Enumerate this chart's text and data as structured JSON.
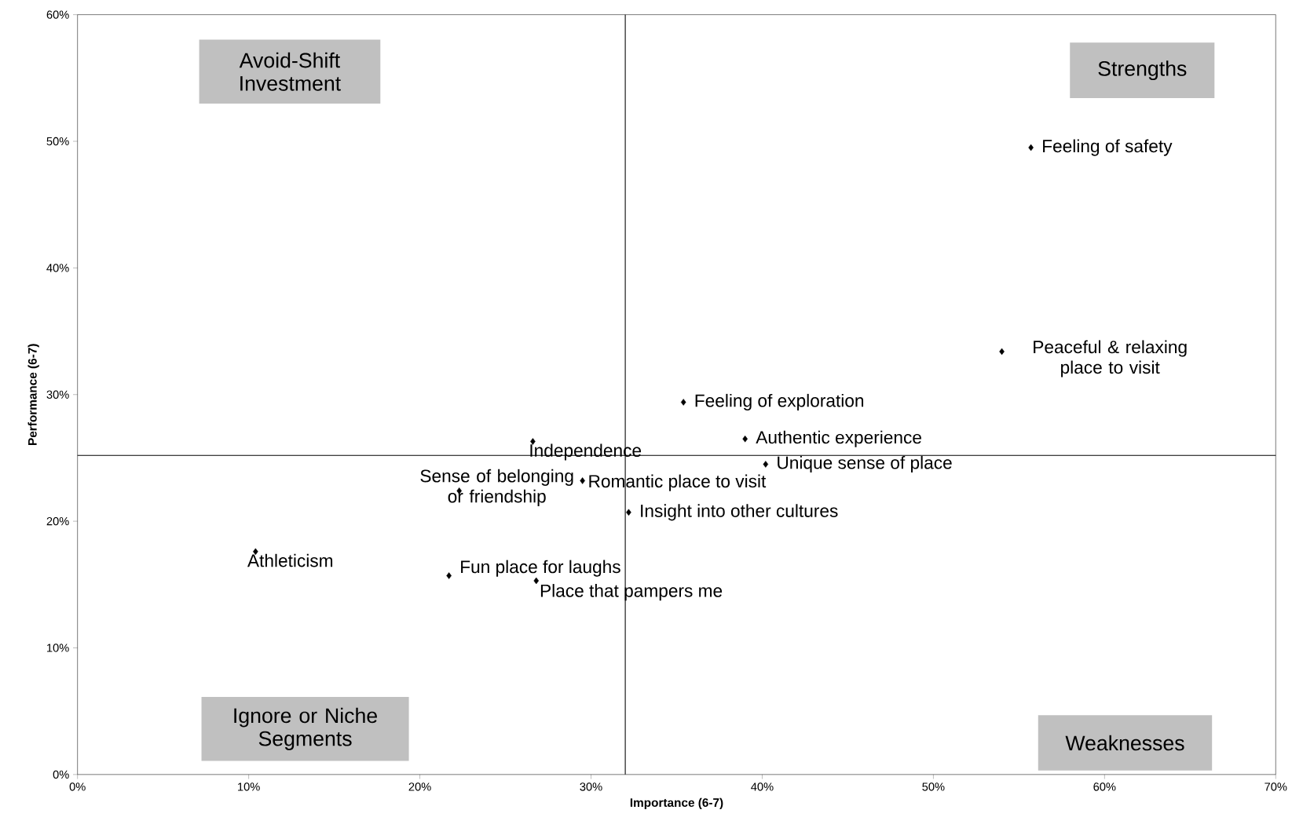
{
  "chart_data": {
    "type": "scatter",
    "xlabel": "Importance (6-7)",
    "ylabel": "Performance (6-7)",
    "x": [
      55.7,
      54.0,
      35.4,
      39.0,
      40.2,
      26.6,
      29.5,
      22.3,
      32.2,
      10.4,
      21.7,
      26.8
    ],
    "values": [
      49.5,
      33.4,
      29.4,
      26.5,
      24.5,
      26.3,
      23.2,
      22.4,
      20.7,
      17.6,
      15.7,
      15.3
    ],
    "color": "#000000",
    "marker": "diamond",
    "grid": false,
    "xlim": [
      0,
      70
    ],
    "ylim": [
      0,
      60
    ],
    "xticks": [
      {
        "value": 0,
        "label": "0%"
      },
      {
        "value": 10,
        "label": "10%"
      },
      {
        "value": 20,
        "label": "20%"
      },
      {
        "value": 30,
        "label": "30%"
      },
      {
        "value": 40,
        "label": "40%"
      },
      {
        "value": 50,
        "label": "50%"
      },
      {
        "value": 60,
        "label": "60%"
      },
      {
        "value": 70,
        "label": "70%"
      }
    ],
    "yticks": [
      {
        "value": 0,
        "label": "0%"
      },
      {
        "value": 10,
        "label": "10%"
      },
      {
        "value": 20,
        "label": "20%"
      },
      {
        "value": 30,
        "label": "30%"
      },
      {
        "value": 40,
        "label": "40%"
      },
      {
        "value": 50,
        "label": "50%"
      },
      {
        "value": 60,
        "label": "60%"
      }
    ],
    "ref_lines": [
      {
        "axis": "x",
        "value": 32.0,
        "color": "#000000"
      },
      {
        "axis": "y",
        "value": 25.2,
        "color": "#000000"
      }
    ],
    "annotations": [
      {
        "text": "Feeling of safety",
        "x": 55.7,
        "y": 49.5
      },
      {
        "text": "Peaceful & relaxing place to visit",
        "x": 54.0,
        "y": 33.4
      },
      {
        "text": "Feeling of exploration",
        "x": 35.4,
        "y": 29.4
      },
      {
        "text": "Authentic experience",
        "x": 39.0,
        "y": 26.5
      },
      {
        "text": "Unique sense of place",
        "x": 40.2,
        "y": 24.5
      },
      {
        "text": "Independence",
        "x": 26.6,
        "y": 26.3
      },
      {
        "text": "Romantic place to visit",
        "x": 29.5,
        "y": 23.2
      },
      {
        "text": "Sense of belonging or friendship",
        "x": 22.3,
        "y": 22.4
      },
      {
        "text": "Insight into other cultures",
        "x": 32.2,
        "y": 20.7
      },
      {
        "text": "Athleticism",
        "x": 10.4,
        "y": 17.6
      },
      {
        "text": "Fun place for laughs",
        "x": 21.7,
        "y": 15.7
      },
      {
        "text": "Place that pampers me",
        "x": 26.8,
        "y": 15.3
      },
      "Avoid-Shift Investment",
      "Strengths",
      "Ignore or Niche Segments",
      "Weaknesses"
    ]
  }
}
